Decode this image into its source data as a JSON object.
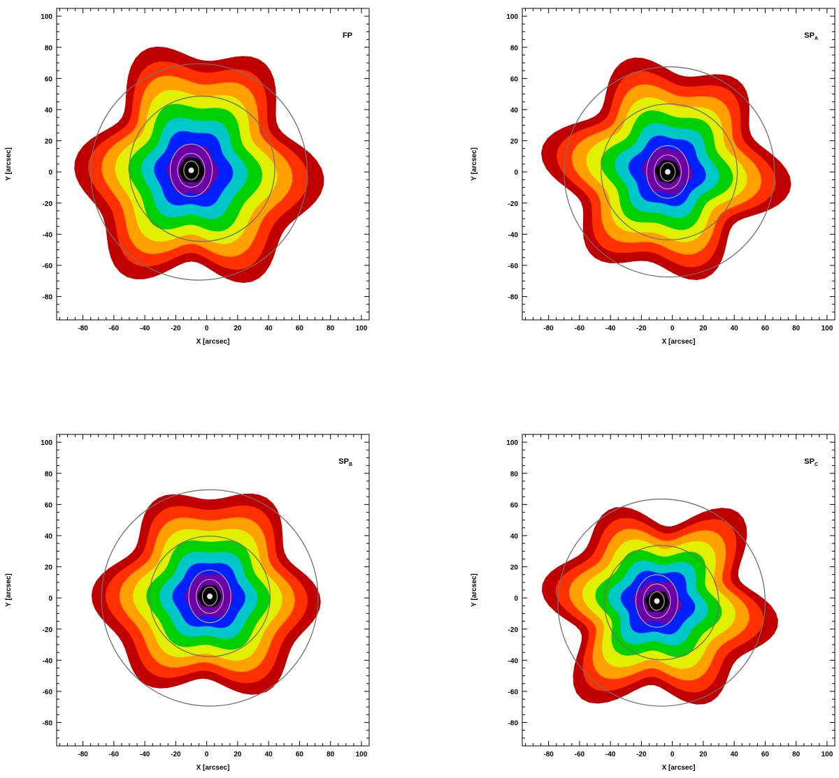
{
  "chart_data": [
    {
      "type": "heatmap",
      "panel_label": "FP",
      "panel_sub": "",
      "xlabel": "X [arcsec]",
      "ylabel": "Y [arcsec]",
      "xlim": [
        -97,
        105
      ],
      "ylim": [
        -95,
        105
      ],
      "xticks": [
        -80,
        -60,
        -40,
        -20,
        0,
        20,
        40,
        60,
        80,
        100
      ],
      "yticks": [
        -80,
        -60,
        -40,
        -20,
        0,
        20,
        40,
        60,
        80,
        100
      ],
      "peak": [
        -10,
        1
      ],
      "outer_radius_offsets": [
        0,
        0,
        0,
        0,
        0,
        0,
        0,
        0,
        0,
        0,
        0,
        0
      ],
      "circles": [
        {
          "cx": -5,
          "cy": 0,
          "r": 70
        },
        {
          "cx": -3,
          "cy": 2,
          "r": 47
        }
      ]
    },
    {
      "type": "heatmap",
      "panel_label": "SP",
      "panel_sub": "A",
      "xlabel": "X [arcsec]",
      "ylabel": "Y [arcsec]",
      "xlim": [
        -97,
        105
      ],
      "ylim": [
        -95,
        105
      ],
      "xticks": [
        -80,
        -60,
        -40,
        -20,
        0,
        20,
        40,
        60,
        80,
        100
      ],
      "yticks": [
        -80,
        -60,
        -40,
        -20,
        0,
        20,
        40,
        60,
        80,
        100
      ],
      "peak": [
        -3,
        0
      ],
      "circles": [
        {
          "cx": -2,
          "cy": 0,
          "r": 68
        },
        {
          "cx": -2,
          "cy": 0,
          "r": 44
        }
      ]
    },
    {
      "type": "heatmap",
      "panel_label": "SP",
      "panel_sub": "B",
      "xlabel": "X [arcsec]",
      "ylabel": "Y [arcsec]",
      "xlim": [
        -97,
        105
      ],
      "ylim": [
        -95,
        105
      ],
      "xticks": [
        -80,
        -60,
        -40,
        -20,
        0,
        20,
        40,
        60,
        80,
        100
      ],
      "yticks": [
        -80,
        -60,
        -40,
        -20,
        0,
        20,
        40,
        60,
        80,
        100
      ],
      "peak": [
        2,
        1
      ],
      "circles": [
        {
          "cx": 2,
          "cy": 0,
          "r": 70
        },
        {
          "cx": 2,
          "cy": 1,
          "r": 39
        }
      ]
    },
    {
      "type": "heatmap",
      "panel_label": "SP",
      "panel_sub": "C",
      "xlabel": "X [arcsec]",
      "ylabel": "Y [arcsec]",
      "xlim": [
        -97,
        105
      ],
      "ylim": [
        -95,
        105
      ],
      "xticks": [
        -80,
        -60,
        -40,
        -20,
        0,
        20,
        40,
        60,
        80,
        100
      ],
      "yticks": [
        -80,
        -60,
        -40,
        -20,
        0,
        20,
        40,
        60,
        80,
        100
      ],
      "peak": [
        -10,
        -2
      ],
      "circles": [
        {
          "cx": -7,
          "cy": -3,
          "r": 67
        },
        {
          "cx": -7,
          "cy": -3,
          "r": 37
        }
      ]
    }
  ],
  "colors": {
    "circle": "#707070",
    "inner_contour": "#c8a0a0",
    "colormap": [
      "#000000",
      "#6a00a8",
      "#0020ff",
      "#00c8c8",
      "#00d000",
      "#e0f000",
      "#ffa000",
      "#ff3000",
      "#c00000"
    ]
  }
}
